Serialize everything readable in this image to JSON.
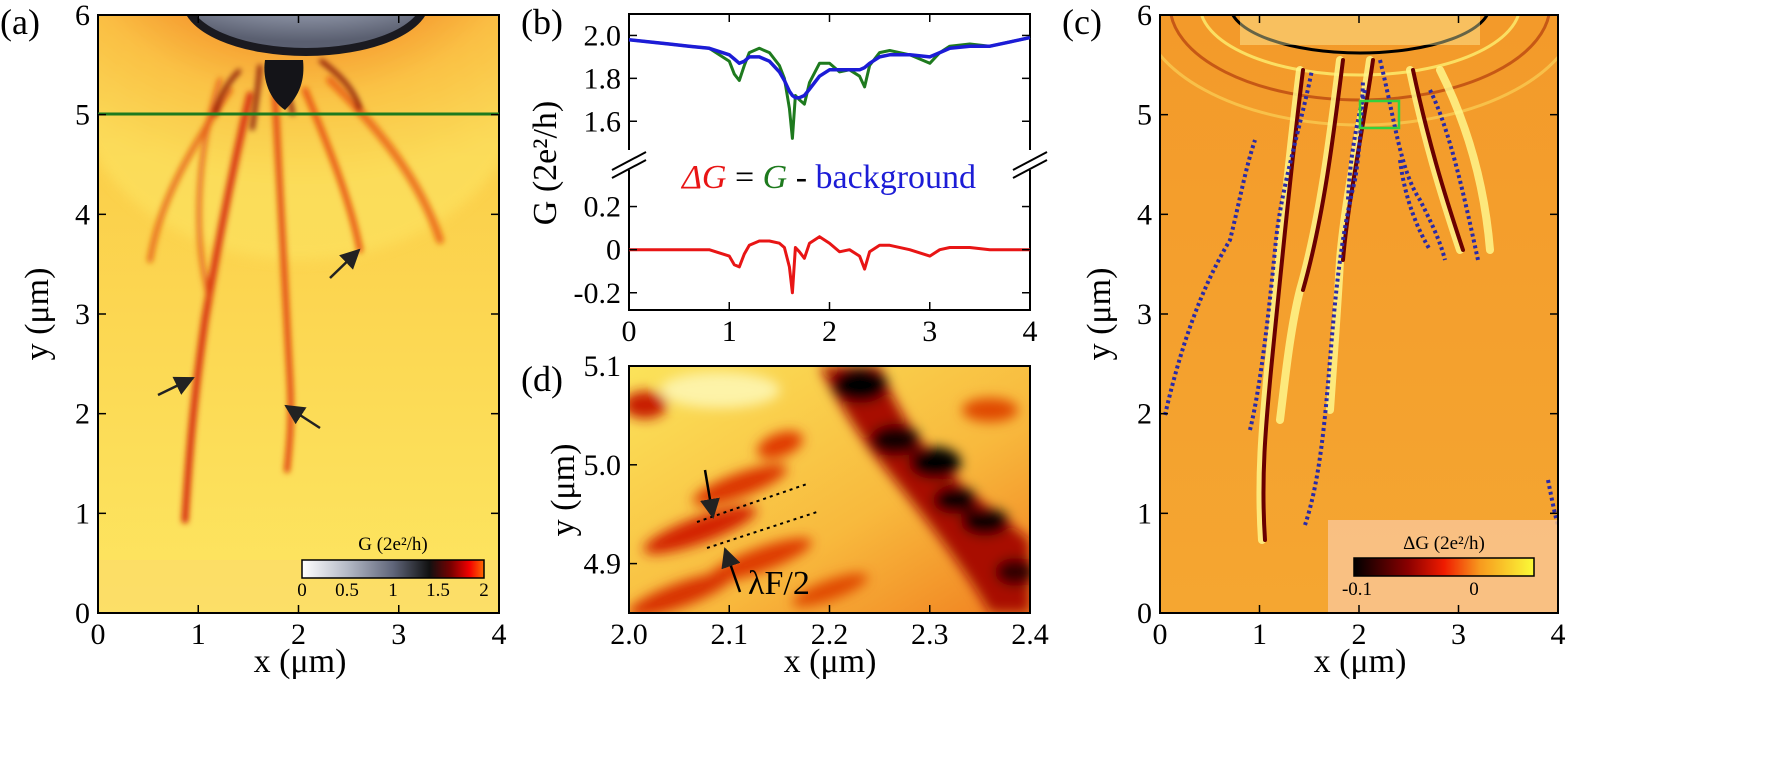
{
  "figure": {
    "panel_a": {
      "label": "(a)",
      "xlabel": "x (μm)",
      "ylabel": "y (μm)",
      "xticks": [
        "0",
        "1",
        "2",
        "3",
        "4"
      ],
      "yticks": [
        "0",
        "1",
        "2",
        "3",
        "4",
        "5",
        "6"
      ],
      "colorbar": {
        "title": "G (2e²/h)",
        "ticks": [
          "0",
          "0.5",
          "1",
          "1.5",
          "2"
        ]
      },
      "line_label_color": "#1e7a1e"
    },
    "panel_b": {
      "label": "(b)",
      "ylabel": "G (2e²/h)",
      "xticks": [
        "0",
        "1",
        "2",
        "3",
        "4"
      ],
      "yticks_top": [
        "1.6",
        "1.8",
        "2.0"
      ],
      "yticks_bottom": [
        "-0.2",
        "0",
        "0.2"
      ],
      "eq": {
        "dg": "ΔG",
        "eq": " = ",
        "g": "G",
        "minus": " - ",
        "bg": "background"
      }
    },
    "panel_c": {
      "label": "(c)",
      "xlabel": "x (μm)",
      "ylabel": "y (μm)",
      "xticks": [
        "0",
        "1",
        "2",
        "3",
        "4"
      ],
      "yticks": [
        "0",
        "1",
        "2",
        "3",
        "4",
        "5",
        "6"
      ],
      "colorbar": {
        "title": "ΔG (2e²/h)",
        "ticks": [
          "-0.1",
          "0"
        ]
      }
    },
    "panel_d": {
      "label": "(d)",
      "xlabel": "x (μm)",
      "ylabel": "y (μm)",
      "xticks": [
        "2.0",
        "2.1",
        "2.2",
        "2.3",
        "2.4"
      ],
      "yticks": [
        "4.9",
        "5.0",
        "5.1"
      ],
      "annotation": "λF/2"
    }
  },
  "chart_data": [
    {
      "type": "heatmap",
      "panel": "(a)",
      "title": "",
      "xlabel": "x (μm)",
      "ylabel": "y (μm)",
      "xlim": [
        0,
        4
      ],
      "ylim": [
        0,
        6
      ],
      "colorbar": {
        "label": "G (2e²/h)",
        "range": [
          0,
          2
        ]
      },
      "horizontal_line_y": 5.0,
      "arrows_at": [
        [
          0.9,
          2.3
        ],
        [
          1.95,
          2.05
        ],
        [
          2.6,
          3.6
        ]
      ]
    },
    {
      "type": "line",
      "panel": "(b)",
      "xlabel": "",
      "ylabel": "G (2e²/h)",
      "xlim": [
        0,
        4
      ],
      "ylim_top": [
        1.48,
        2.1
      ],
      "ylim_bottom": [
        -0.28,
        0.3
      ],
      "x": [
        0.0,
        0.2,
        0.4,
        0.6,
        0.8,
        1.0,
        1.05,
        1.1,
        1.15,
        1.2,
        1.3,
        1.4,
        1.5,
        1.55,
        1.6,
        1.63,
        1.66,
        1.7,
        1.75,
        1.8,
        1.9,
        2.0,
        2.1,
        2.2,
        2.3,
        2.35,
        2.4,
        2.5,
        2.6,
        2.8,
        3.0,
        3.1,
        3.2,
        3.4,
        3.6,
        3.8,
        4.0
      ],
      "series": [
        {
          "name": "G",
          "color": "#1e7a1e",
          "values": [
            1.98,
            1.97,
            1.96,
            1.95,
            1.94,
            1.88,
            1.82,
            1.79,
            1.86,
            1.92,
            1.94,
            1.92,
            1.86,
            1.8,
            1.66,
            1.52,
            1.72,
            1.7,
            1.68,
            1.78,
            1.87,
            1.87,
            1.83,
            1.84,
            1.81,
            1.76,
            1.86,
            1.92,
            1.93,
            1.91,
            1.87,
            1.92,
            1.95,
            1.96,
            1.95,
            1.97,
            1.99
          ]
        },
        {
          "name": "background",
          "color": "#1c1cd6",
          "values": [
            1.98,
            1.97,
            1.96,
            1.95,
            1.94,
            1.91,
            1.89,
            1.87,
            1.88,
            1.9,
            1.9,
            1.88,
            1.83,
            1.79,
            1.74,
            1.72,
            1.71,
            1.71,
            1.72,
            1.75,
            1.81,
            1.84,
            1.84,
            1.84,
            1.84,
            1.85,
            1.87,
            1.9,
            1.91,
            1.91,
            1.9,
            1.92,
            1.94,
            1.95,
            1.95,
            1.97,
            1.99
          ]
        },
        {
          "name": "ΔG",
          "color": "#e81515",
          "values": [
            0.0,
            0.0,
            0.0,
            0.0,
            0.0,
            -0.03,
            -0.07,
            -0.08,
            -0.02,
            0.02,
            0.04,
            0.04,
            0.03,
            0.01,
            -0.08,
            -0.2,
            0.01,
            -0.01,
            -0.04,
            0.03,
            0.06,
            0.03,
            -0.01,
            0.0,
            -0.03,
            -0.09,
            -0.01,
            0.02,
            0.02,
            0.0,
            -0.03,
            0.0,
            0.01,
            0.01,
            0.0,
            0.0,
            0.0
          ]
        }
      ],
      "annotation": "ΔG = G - background"
    },
    {
      "type": "heatmap",
      "panel": "(c)",
      "xlabel": "x (μm)",
      "ylabel": "y (μm)",
      "xlim": [
        0,
        4
      ],
      "ylim": [
        0,
        6
      ],
      "colorbar": {
        "label": "ΔG (2e²/h)",
        "range": [
          -0.1,
          0.05
        ]
      },
      "highlight_box": {
        "x": [
          2.0,
          2.4
        ],
        "y": [
          4.85,
          5.1
        ]
      }
    },
    {
      "type": "heatmap",
      "panel": "(d)",
      "xlabel": "x (μm)",
      "ylabel": "y (μm)",
      "xlim": [
        2.0,
        2.4
      ],
      "ylim": [
        4.85,
        5.1
      ],
      "annotation": "λF/2"
    }
  ]
}
